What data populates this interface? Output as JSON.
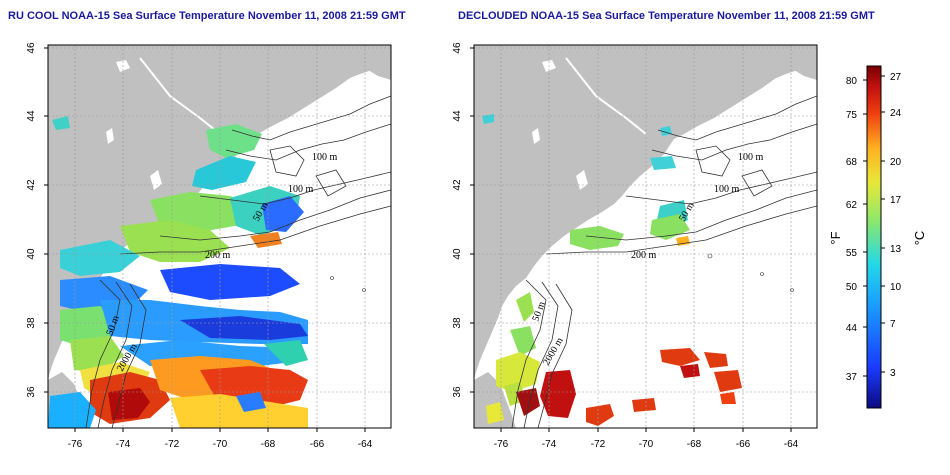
{
  "panels": [
    {
      "title": "RU COOL NOAA-15 Sea Surface Temperature November 11, 2008 21:59 GMT",
      "y_ticks": [
        "46",
        "44",
        "42",
        "40",
        "38",
        "36"
      ],
      "x_ticks": [
        "-76",
        "-74",
        "-72",
        "-70",
        "-68",
        "-66",
        "-64"
      ],
      "isobath_labels": [
        "100 m",
        "100 m",
        "50 m",
        "200 m",
        "50 m",
        "2000 m"
      ]
    },
    {
      "title": "DECLOUDED NOAA-15 Sea Surface Temperature November 11, 2008 21:59 GMT",
      "y_ticks": [
        "46",
        "44",
        "42",
        "40",
        "38",
        "36"
      ],
      "x_ticks": [
        "-76",
        "-74",
        "-72",
        "-70",
        "-68",
        "-66",
        "-64"
      ],
      "isobath_labels": [
        "100 m",
        "100 m",
        "50 m",
        "200 m",
        "50 m",
        "2000 m"
      ]
    }
  ],
  "colorbar": {
    "fahrenheit_ticks": [
      "80",
      "75",
      "68",
      "62",
      "55",
      "50",
      "44",
      "37"
    ],
    "celsius_ticks": [
      "27",
      "24",
      "20",
      "17",
      "13",
      "10",
      "7",
      "3"
    ],
    "fahrenheit_label": "°F",
    "celsius_label": "°C"
  },
  "colors": {
    "land": "#c0c0c0",
    "ocean_no_data": "#ffffff",
    "title": "#1a1a9c",
    "grid": "#9a9a9a"
  }
}
